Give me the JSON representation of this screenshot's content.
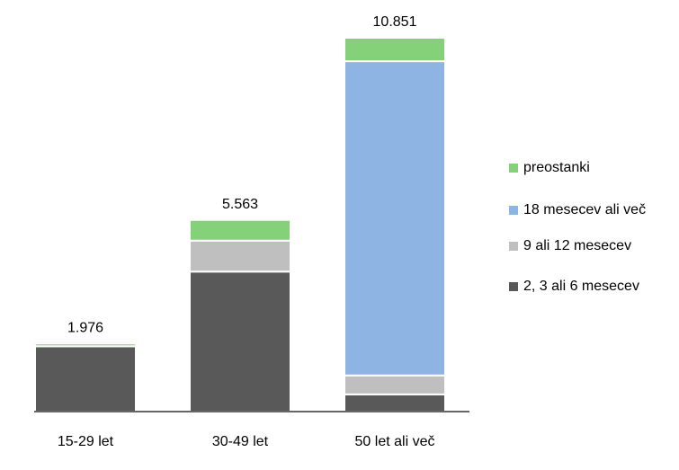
{
  "chart_data": {
    "type": "stacked_bar",
    "categories": [
      "15-29 let",
      "30-49 let",
      "50 let ali več"
    ],
    "series": [
      {
        "name": "2, 3 ali 6 mesecev",
        "color": "#595959",
        "values": [
          1896,
          4063,
          500
        ]
      },
      {
        "name": "9 ali 12 mesecev",
        "color": "#bfbfbf",
        "values": [
          0,
          900,
          550
        ]
      },
      {
        "name": "18 mesecev ali več",
        "color": "#8eb4e3",
        "values": [
          0,
          0,
          9120
        ]
      },
      {
        "name": "preostanki",
        "color": "#85d17a",
        "values": [
          80,
          600,
          681
        ]
      }
    ],
    "totals": {
      "values": [
        1976,
        5563,
        10851
      ],
      "value_labels": [
        "1.976",
        "5.563",
        "10.851"
      ]
    },
    "legend": "right"
  }
}
